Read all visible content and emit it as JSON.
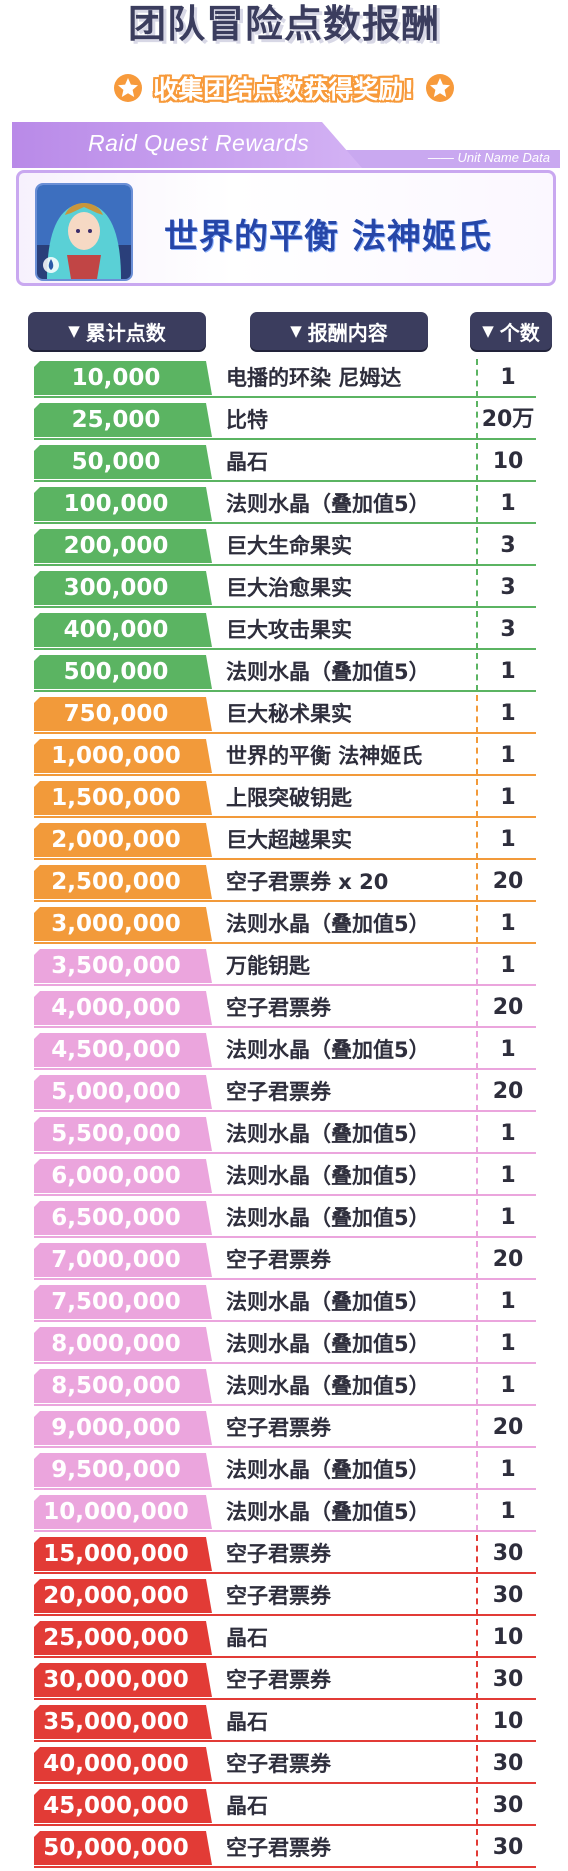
{
  "title": "团队冒险点数报酬",
  "subtitle": "收集团结点数获得奖励!",
  "card": {
    "tab_label": "Raid Quest Rewards",
    "strip_label": "—— Unit Name Data",
    "unit_name": "世界的平衡 法神姬氏"
  },
  "headers": {
    "points": "累计点数",
    "reward": "报酬内容",
    "qty": "个数"
  },
  "tier_colors": {
    "green": "#5bb462",
    "orange": "#f29a3a",
    "pink": "#eba5dd",
    "red": "#e23b36"
  },
  "rows": [
    {
      "points": "10,000",
      "reward": "电播的环染 尼姆达",
      "qty": "1",
      "tier": "green"
    },
    {
      "points": "25,000",
      "reward": "比特",
      "qty": "20万",
      "tier": "green"
    },
    {
      "points": "50,000",
      "reward": "晶石",
      "qty": "10",
      "tier": "green"
    },
    {
      "points": "100,000",
      "reward": "法则水晶（叠加值5）",
      "qty": "1",
      "tier": "green"
    },
    {
      "points": "200,000",
      "reward": "巨大生命果实",
      "qty": "3",
      "tier": "green"
    },
    {
      "points": "300,000",
      "reward": "巨大治愈果实",
      "qty": "3",
      "tier": "green"
    },
    {
      "points": "400,000",
      "reward": "巨大攻击果实",
      "qty": "3",
      "tier": "green"
    },
    {
      "points": "500,000",
      "reward": "法则水晶（叠加值5）",
      "qty": "1",
      "tier": "green"
    },
    {
      "points": "750,000",
      "reward": "巨大秘术果实",
      "qty": "1",
      "tier": "orange"
    },
    {
      "points": "1,000,000",
      "reward": "世界的平衡 法神姬氏",
      "qty": "1",
      "tier": "orange"
    },
    {
      "points": "1,500,000",
      "reward": "上限突破钥匙",
      "qty": "1",
      "tier": "orange"
    },
    {
      "points": "2,000,000",
      "reward": "巨大超越果实",
      "qty": "1",
      "tier": "orange"
    },
    {
      "points": "2,500,000",
      "reward": "空子君票券 x 20",
      "qty": "20",
      "tier": "orange"
    },
    {
      "points": "3,000,000",
      "reward": "法则水晶（叠加值5）",
      "qty": "1",
      "tier": "orange"
    },
    {
      "points": "3,500,000",
      "reward": "万能钥匙",
      "qty": "1",
      "tier": "pink"
    },
    {
      "points": "4,000,000",
      "reward": "空子君票券",
      "qty": "20",
      "tier": "pink"
    },
    {
      "points": "4,500,000",
      "reward": "法则水晶（叠加值5）",
      "qty": "1",
      "tier": "pink"
    },
    {
      "points": "5,000,000",
      "reward": "空子君票券",
      "qty": "20",
      "tier": "pink"
    },
    {
      "points": "5,500,000",
      "reward": "法则水晶（叠加值5）",
      "qty": "1",
      "tier": "pink"
    },
    {
      "points": "6,000,000",
      "reward": "法则水晶（叠加值5）",
      "qty": "1",
      "tier": "pink"
    },
    {
      "points": "6,500,000",
      "reward": "法则水晶（叠加值5）",
      "qty": "1",
      "tier": "pink"
    },
    {
      "points": "7,000,000",
      "reward": "空子君票券",
      "qty": "20",
      "tier": "pink"
    },
    {
      "points": "7,500,000",
      "reward": "法则水晶（叠加值5）",
      "qty": "1",
      "tier": "pink"
    },
    {
      "points": "8,000,000",
      "reward": "法则水晶（叠加值5）",
      "qty": "1",
      "tier": "pink"
    },
    {
      "points": "8,500,000",
      "reward": "法则水晶（叠加值5）",
      "qty": "1",
      "tier": "pink"
    },
    {
      "points": "9,000,000",
      "reward": "空子君票券",
      "qty": "20",
      "tier": "pink"
    },
    {
      "points": "9,500,000",
      "reward": "法则水晶（叠加值5）",
      "qty": "1",
      "tier": "pink"
    },
    {
      "points": "10,000,000",
      "reward": "法则水晶（叠加值5）",
      "qty": "1",
      "tier": "pink"
    },
    {
      "points": "15,000,000",
      "reward": "空子君票券",
      "qty": "30",
      "tier": "red"
    },
    {
      "points": "20,000,000",
      "reward": "空子君票券",
      "qty": "30",
      "tier": "red"
    },
    {
      "points": "25,000,000",
      "reward": "晶石",
      "qty": "10",
      "tier": "red"
    },
    {
      "points": "30,000,000",
      "reward": "空子君票券",
      "qty": "30",
      "tier": "red"
    },
    {
      "points": "35,000,000",
      "reward": "晶石",
      "qty": "10",
      "tier": "red"
    },
    {
      "points": "40,000,000",
      "reward": "空子君票券",
      "qty": "30",
      "tier": "red"
    },
    {
      "points": "45,000,000",
      "reward": "晶石",
      "qty": "30",
      "tier": "red"
    },
    {
      "points": "50,000,000",
      "reward": "空子君票券",
      "qty": "30",
      "tier": "red"
    }
  ]
}
